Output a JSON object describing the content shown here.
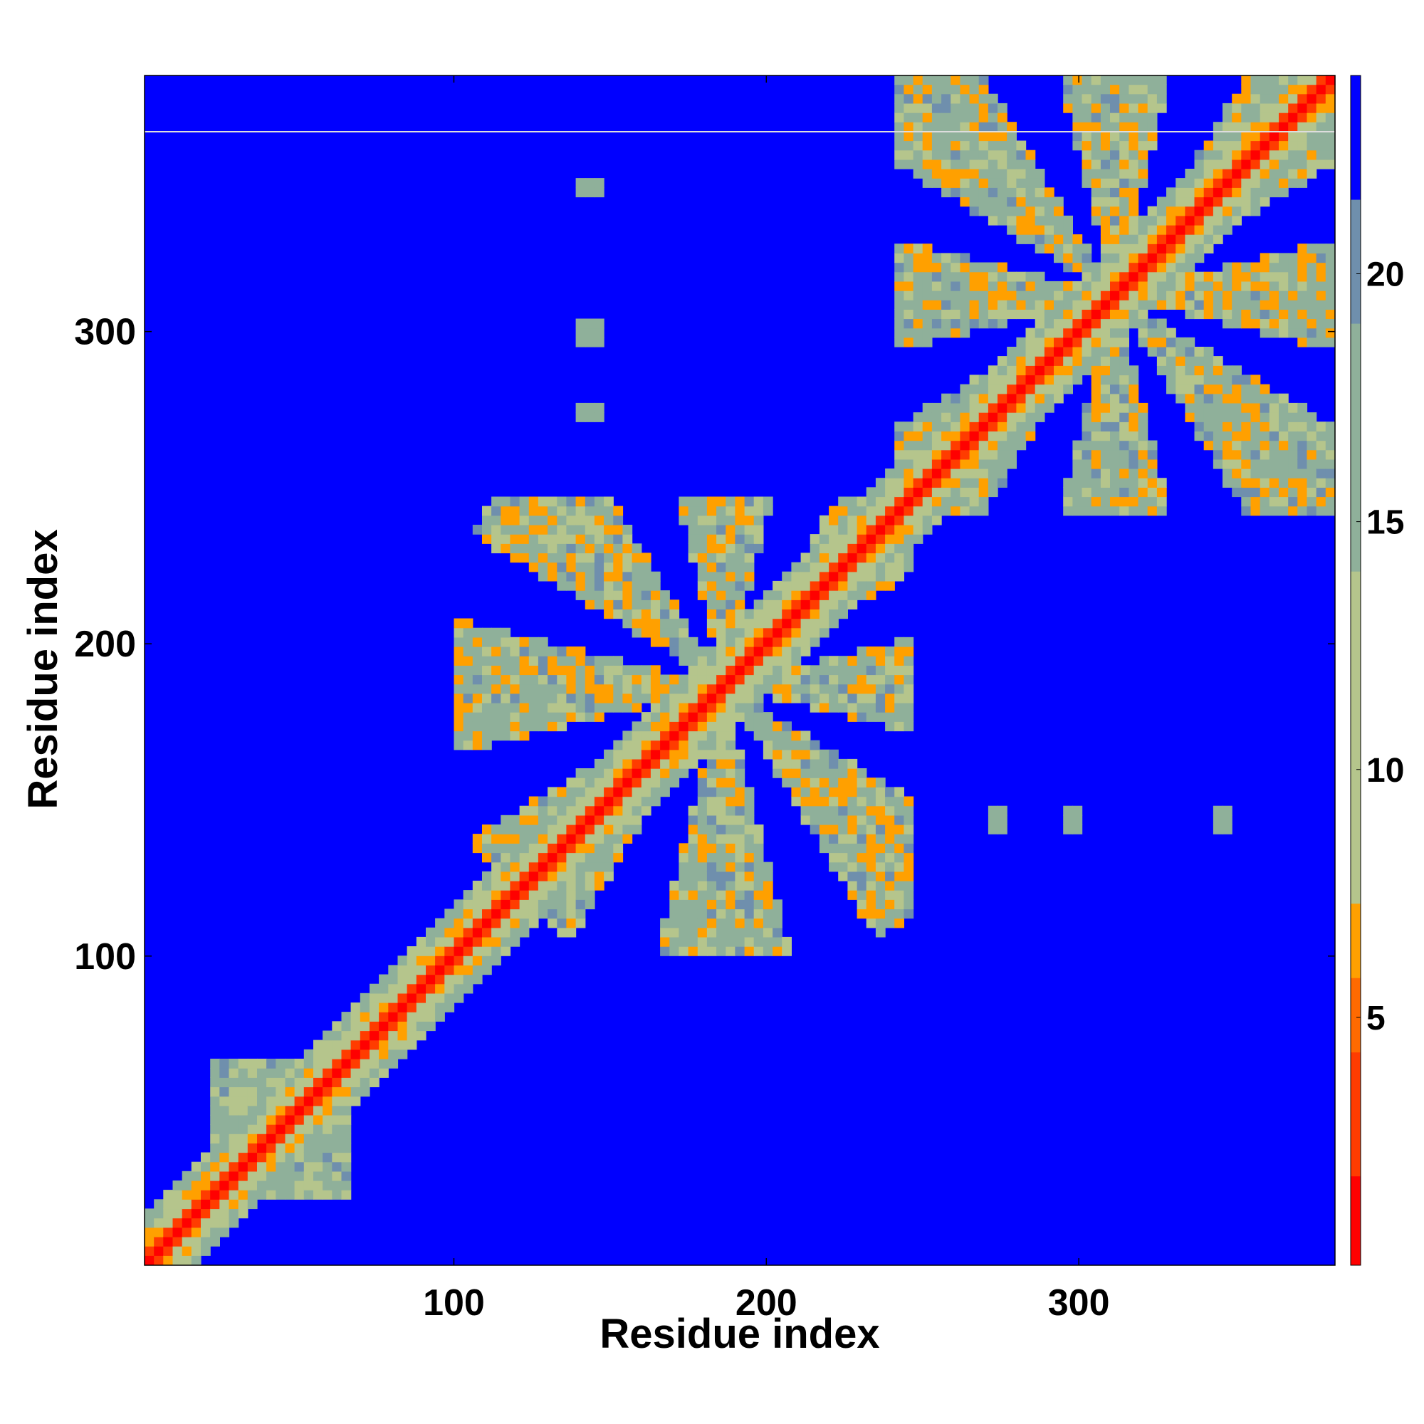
{
  "chart_data": {
    "type": "heatmap",
    "title": "",
    "xlabel": "Residue index",
    "ylabel": "Residue index",
    "xlim": [
      1,
      382
    ],
    "ylim": [
      1,
      382
    ],
    "x_ticks": [
      100,
      200,
      300
    ],
    "y_ticks": [
      100,
      200,
      300
    ],
    "colorbar": {
      "range": [
        0,
        24
      ],
      "ticks": [
        5,
        10,
        15,
        20
      ],
      "colors": [
        "#ff0000",
        "#ff3c00",
        "#ff6a00",
        "#ffa000",
        "#b5c58c",
        "#8fb09a",
        "#6f8fad",
        "#0000ff"
      ],
      "bounds": [
        0,
        1.8,
        4.3,
        5.8,
        7.3,
        14,
        19,
        21.5,
        24
      ]
    },
    "values_description_visible": "contact distance map (symmetric), diagonal ≈ 0",
    "regions": [
      {
        "name": "diagonal",
        "from": 1,
        "to": 382,
        "value": 3
      },
      {
        "name": "domain-n",
        "x": [
          20,
          65
        ],
        "y": [
          20,
          65
        ],
        "value": 15
      },
      {
        "name": "domain-mid",
        "x": [
          100,
          245
        ],
        "y": [
          100,
          245
        ],
        "value": 14
      },
      {
        "name": "domain-c",
        "x": [
          240,
          382
        ],
        "y": [
          240,
          382
        ],
        "value": 14
      },
      {
        "name": "spot-1",
        "x": [
          142,
          142
        ],
        "y": [
          345,
          345
        ],
        "value": 16
      },
      {
        "name": "spot-2",
        "x": [
          142,
          142
        ],
        "y": [
          298,
          298
        ],
        "value": 16
      },
      {
        "name": "spot-3",
        "x": [
          142,
          142
        ],
        "y": [
          272,
          272
        ],
        "value": 16
      },
      {
        "name": "spot-4",
        "x": [
          272,
          272
        ],
        "y": [
          142,
          142
        ],
        "value": 16
      },
      {
        "name": "spot-5",
        "x": [
          297,
          297
        ],
        "y": [
          142,
          142
        ],
        "value": 16
      },
      {
        "name": "spot-6",
        "x": [
          345,
          345
        ],
        "y": [
          142,
          142
        ],
        "value": 16
      }
    ]
  },
  "colors": {
    "background": "#0000ff",
    "diagonal": "#ff0000",
    "near": "#ff8a00",
    "mid": "#a8c08e",
    "far": "#6f8fad"
  }
}
